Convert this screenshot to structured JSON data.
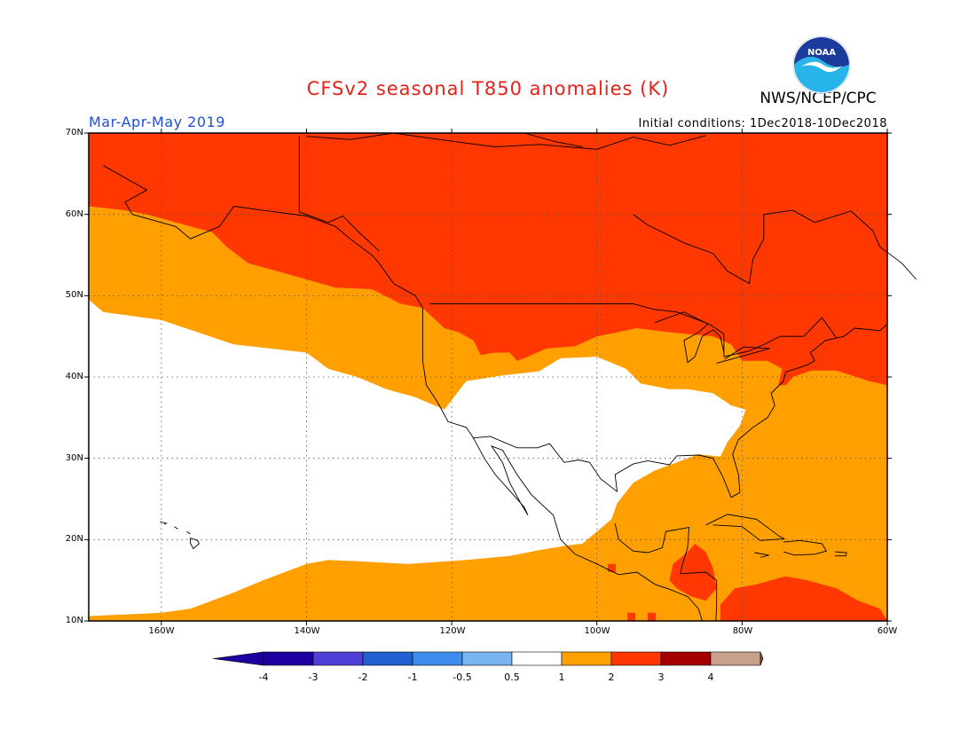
{
  "title": "CFSv2 seasonal T850 anomalies (K)",
  "credit": "NWS/NCEP/CPC",
  "season": "Mar-Apr-May 2019",
  "initial_conditions": "Initial conditions: 1Dec2018-10Dec2018",
  "logo_text": "NOAA",
  "colors": {
    "title": "#e8201a",
    "season": "#1f4fd6",
    "white": "#ffffff",
    "orange": "#ffa000",
    "red_orange": "#ff3700",
    "dark_red": "#a50000",
    "tan": "#c8a08c",
    "brown": "#785046",
    "blues": [
      "#1e00a0",
      "#5040d6",
      "#2060d2",
      "#3c8ced",
      "#78b4f0"
    ]
  },
  "map": {
    "lat_labels": [
      "70N",
      "60N",
      "50N",
      "40N",
      "30N",
      "20N",
      "10N"
    ],
    "lon_labels": [
      "160W",
      "140W",
      "120W",
      "100W",
      "80W",
      "60W"
    ],
    "lat_range": [
      10,
      70
    ],
    "lon_range": [
      -170,
      -60
    ]
  },
  "colorbar": {
    "labels": [
      "-4",
      "-3",
      "-2",
      "-1",
      "-0.5",
      "0.5",
      "1",
      "2",
      "3",
      "4"
    ]
  }
}
